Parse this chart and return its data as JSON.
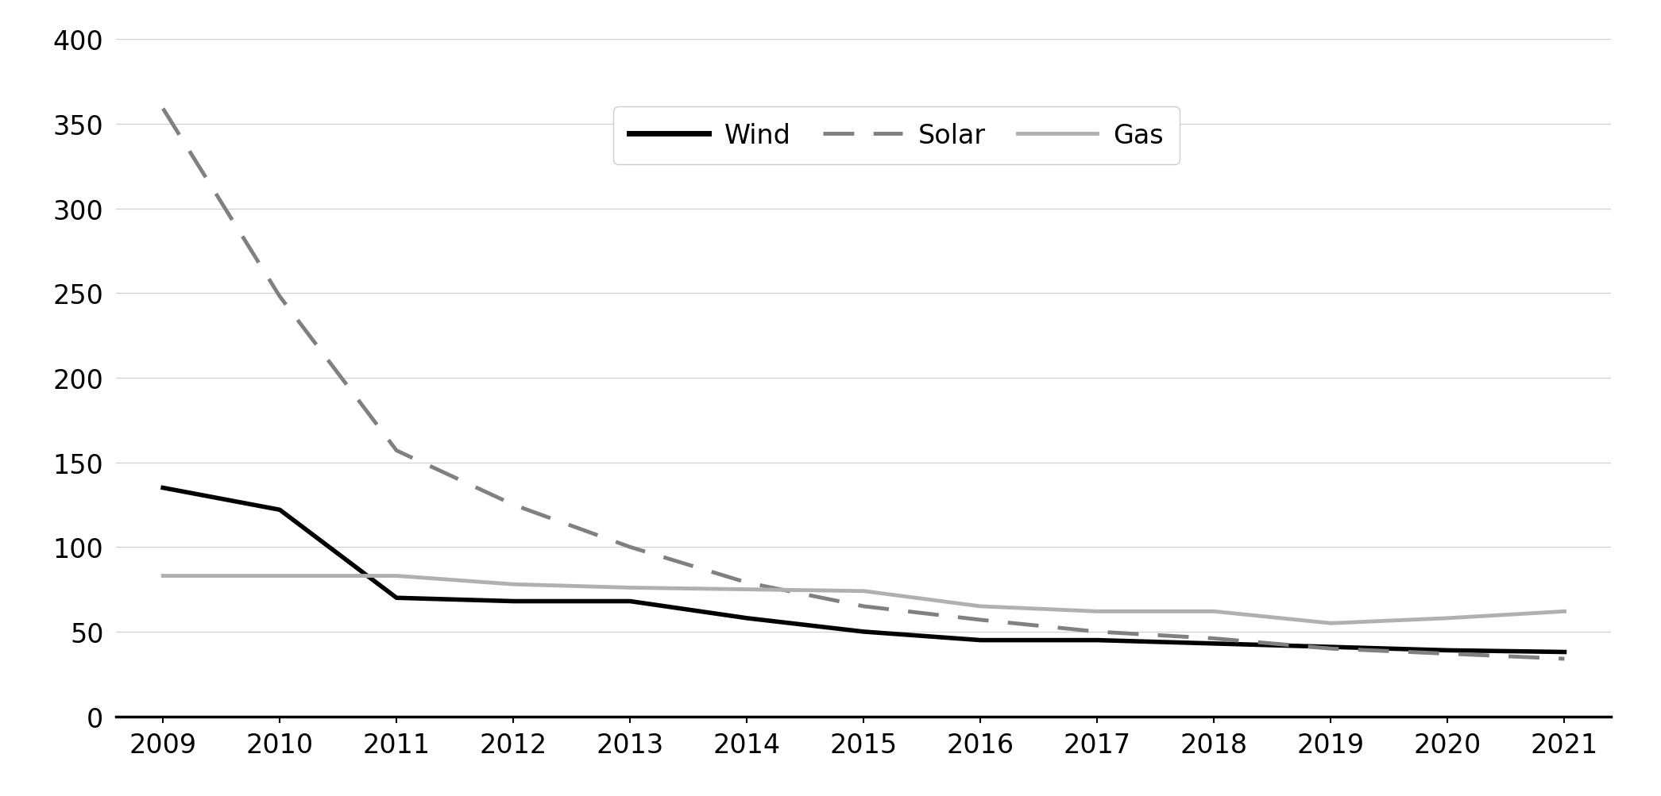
{
  "years": [
    2009,
    2010,
    2011,
    2012,
    2013,
    2014,
    2015,
    2016,
    2017,
    2018,
    2019,
    2020,
    2021
  ],
  "wind": [
    135,
    122,
    70,
    68,
    68,
    58,
    50,
    45,
    45,
    43,
    41,
    39,
    38
  ],
  "solar": [
    359,
    248,
    157,
    125,
    100,
    79,
    65,
    57,
    50,
    46,
    40,
    37,
    34
  ],
  "gas": [
    83,
    83,
    83,
    78,
    76,
    75,
    74,
    65,
    62,
    62,
    55,
    58,
    62
  ],
  "wind_color": "#000000",
  "solar_color": "#808080",
  "gas_color": "#b0b0b0",
  "background_color": "#ffffff",
  "grid_color": "#d0d0d0",
  "ylim": [
    0,
    400
  ],
  "yticks": [
    0,
    50,
    100,
    150,
    200,
    250,
    300,
    350,
    400
  ],
  "xlim_start": 2009,
  "xlim_end": 2021,
  "legend_labels": [
    "Wind",
    "Solar",
    "Gas"
  ],
  "line_width": 3.5,
  "font_size": 24
}
